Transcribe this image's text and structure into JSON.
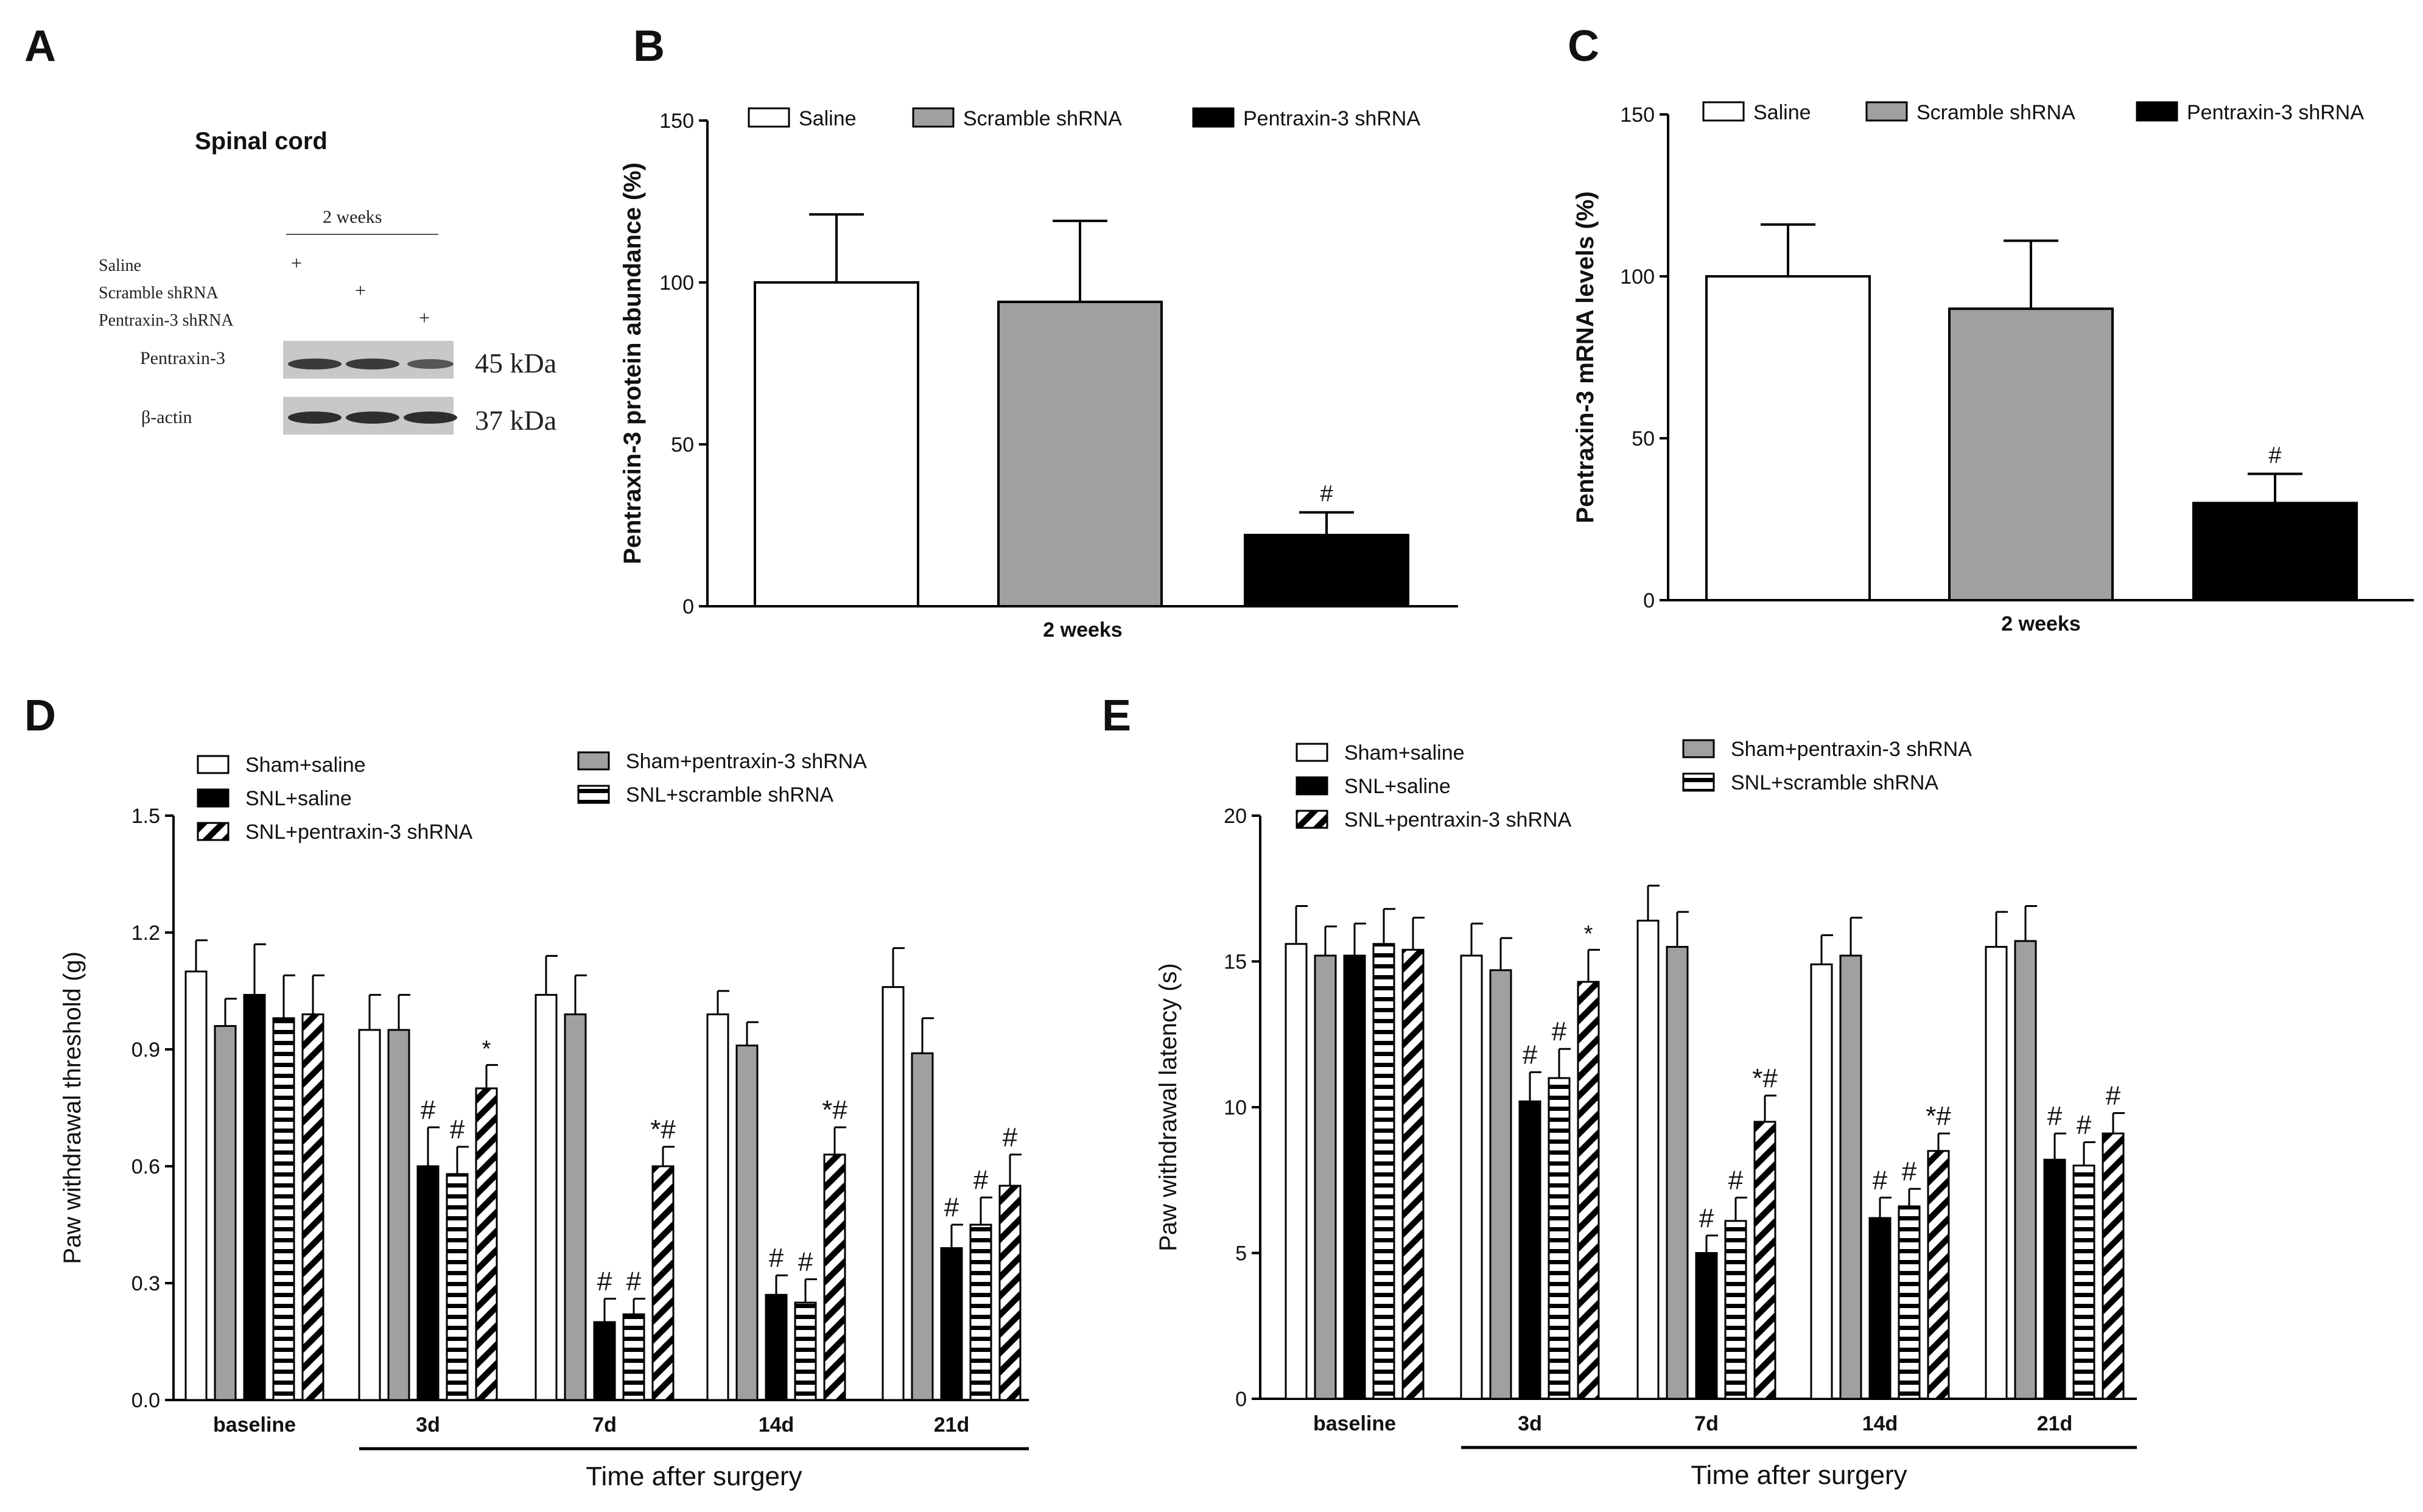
{
  "panel_labels": {
    "a": "A",
    "b": "B",
    "c": "C",
    "d": "D",
    "e": "E"
  },
  "colors": {
    "white": "#ffffff",
    "gray": "#a0a0a0",
    "black": "#000000",
    "band": "#3a3a3a",
    "blot_bg": "#c8c8c8"
  },
  "western_blot": {
    "title": "Spinal cord",
    "timepoint": "2 weeks",
    "conditions": [
      "Saline",
      "Scramble shRNA",
      "Pentraxin-3 shRNA"
    ],
    "plus": "+",
    "bands": [
      {
        "label": "Pentraxin-3",
        "kda": "45 kDa"
      },
      {
        "label": "β-actin",
        "kda": "37 kDa"
      }
    ]
  },
  "chart_data": [
    {
      "id": "B",
      "type": "bar",
      "ylabel": "Pentraxin-3 protein abundance (%)",
      "xlabel": "2 weeks",
      "ylim": [
        0,
        150
      ],
      "yticks": [
        0,
        50,
        100,
        150
      ],
      "legend": [
        "Saline",
        "Scramble shRNA",
        "Pentraxin-3 shRNA"
      ],
      "series": [
        {
          "name": "Saline",
          "value": 100,
          "error": 21,
          "annotation": ""
        },
        {
          "name": "Scramble shRNA",
          "value": 94,
          "error": 25,
          "annotation": ""
        },
        {
          "name": "Pentraxin-3 shRNA",
          "value": 22,
          "error": 7,
          "annotation": "#"
        }
      ]
    },
    {
      "id": "C",
      "type": "bar",
      "ylabel": "Pentraxin-3 mRNA levels (%)",
      "xlabel": "2 weeks",
      "ylim": [
        0,
        150
      ],
      "yticks": [
        0,
        50,
        100,
        150
      ],
      "legend": [
        "Saline",
        "Scramble shRNA",
        "Pentraxin-3 shRNA"
      ],
      "series": [
        {
          "name": "Saline",
          "value": 100,
          "error": 16,
          "annotation": ""
        },
        {
          "name": "Scramble shRNA",
          "value": 90,
          "error": 21,
          "annotation": ""
        },
        {
          "name": "Pentraxin-3 shRNA",
          "value": 30,
          "error": 9,
          "annotation": "#"
        }
      ]
    },
    {
      "id": "D",
      "type": "bar",
      "ylabel": "Paw withdrawal threshold (g)",
      "xlabel": "Time after surgery",
      "ylim": [
        0,
        1.5
      ],
      "yticks": [
        "0.0",
        "0.3",
        "0.6",
        "0.9",
        "1.2",
        "1.5"
      ],
      "categories": [
        "baseline",
        "3d",
        "7d",
        "14d",
        "21d"
      ],
      "legend": [
        "Sham+saline",
        "SNL+saline",
        "SNL+pentraxin-3 shRNA",
        "Sham+pentraxin-3 shRNA",
        "SNL+scramble shRNA"
      ],
      "series": [
        {
          "name": "Sham+saline",
          "values": [
            1.1,
            0.95,
            1.04,
            0.99,
            1.06
          ],
          "errors": [
            0.08,
            0.09,
            0.1,
            0.06,
            0.1
          ],
          "annotations": [
            "",
            "",
            "",
            "",
            ""
          ]
        },
        {
          "name": "Sham+pentraxin-3 shRNA",
          "values": [
            0.96,
            0.95,
            0.99,
            0.91,
            0.89
          ],
          "errors": [
            0.07,
            0.09,
            0.1,
            0.06,
            0.09
          ],
          "annotations": [
            "",
            "",
            "",
            "",
            ""
          ]
        },
        {
          "name": "SNL+saline",
          "values": [
            1.04,
            0.6,
            0.2,
            0.27,
            0.39
          ],
          "errors": [
            0.13,
            0.1,
            0.06,
            0.05,
            0.06
          ],
          "annotations": [
            "",
            "#",
            "#",
            "#",
            "#"
          ]
        },
        {
          "name": "SNL+scramble shRNA",
          "values": [
            0.98,
            0.58,
            0.22,
            0.25,
            0.45
          ],
          "errors": [
            0.11,
            0.07,
            0.04,
            0.06,
            0.07
          ],
          "annotations": [
            "",
            "#",
            "#",
            "#",
            "#"
          ]
        },
        {
          "name": "SNL+pentraxin-3 shRNA",
          "values": [
            0.99,
            0.8,
            0.6,
            0.63,
            0.55
          ],
          "errors": [
            0.1,
            0.06,
            0.05,
            0.07,
            0.08
          ],
          "annotations": [
            "",
            "*",
            "*#",
            "*#",
            "#"
          ]
        }
      ]
    },
    {
      "id": "E",
      "type": "bar",
      "ylabel": "Paw withdrawal latency (s)",
      "xlabel": "Time after surgery",
      "ylim": [
        0,
        20
      ],
      "yticks": [
        "0",
        "5",
        "10",
        "15",
        "20"
      ],
      "categories": [
        "baseline",
        "3d",
        "7d",
        "14d",
        "21d"
      ],
      "legend": [
        "Sham+saline",
        "SNL+saline",
        "SNL+pentraxin-3 shRNA",
        "Sham+pentraxin-3 shRNA",
        "SNL+scramble shRNA"
      ],
      "series": [
        {
          "name": "Sham+saline",
          "values": [
            15.6,
            15.2,
            16.4,
            14.9,
            15.5
          ],
          "errors": [
            1.3,
            1.1,
            1.2,
            1.0,
            1.2
          ],
          "annotations": [
            "",
            "",
            "",
            "",
            ""
          ]
        },
        {
          "name": "Sham+pentraxin-3 shRNA",
          "values": [
            15.2,
            14.7,
            15.5,
            15.2,
            15.7
          ],
          "errors": [
            1.0,
            1.1,
            1.2,
            1.3,
            1.2
          ],
          "annotations": [
            "",
            "",
            "",
            "",
            ""
          ]
        },
        {
          "name": "SNL+saline",
          "values": [
            15.2,
            10.2,
            5.0,
            6.2,
            8.2
          ],
          "errors": [
            1.1,
            1.0,
            0.6,
            0.7,
            0.9
          ],
          "annotations": [
            "",
            "#",
            "#",
            "#",
            "#"
          ]
        },
        {
          "name": "SNL+scramble shRNA",
          "values": [
            15.6,
            11.0,
            6.1,
            6.6,
            8.0
          ],
          "errors": [
            1.2,
            1.0,
            0.8,
            0.6,
            0.8
          ],
          "annotations": [
            "",
            "#",
            "#",
            "#",
            "#"
          ]
        },
        {
          "name": "SNL+pentraxin-3 shRNA",
          "values": [
            15.4,
            14.3,
            9.5,
            8.5,
            9.1
          ],
          "errors": [
            1.1,
            1.1,
            0.9,
            0.6,
            0.7
          ],
          "annotations": [
            "",
            "*",
            "*#",
            "*#",
            "#"
          ]
        }
      ]
    }
  ]
}
